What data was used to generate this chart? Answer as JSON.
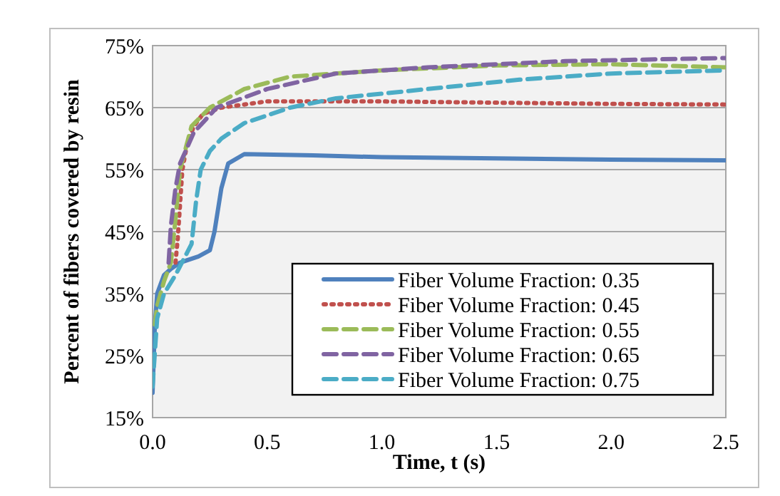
{
  "chart_data": {
    "type": "line",
    "xlabel": "Time, t (s)",
    "ylabel": "Percent of fibers covered by resin",
    "xlim": [
      0,
      2.5
    ],
    "xticks": [
      {
        "value": 0,
        "label": "0.0"
      },
      0.5,
      {
        "value": 1,
        "label": "1.0"
      },
      1.5,
      {
        "value": 2,
        "label": "2.0"
      },
      2.5
    ],
    "ylim": [
      15,
      75
    ],
    "yticks": [
      {
        "value": 15,
        "label": "15%"
      },
      {
        "value": 25,
        "label": "25%"
      },
      {
        "value": 35,
        "label": "35%"
      },
      {
        "value": 45,
        "label": "45%"
      },
      {
        "value": 55,
        "label": "55%"
      },
      {
        "value": 65,
        "label": "65%"
      },
      {
        "value": 75,
        "label": "75%"
      }
    ],
    "grid": "y",
    "legend": "bottom right",
    "marker": "none",
    "series": [
      {
        "name": "Fiber Volume Fraction: 0.35",
        "color": "#4f81bd",
        "line_style": "solid",
        "x": [
          0,
          0.01,
          0.02,
          0.05,
          0.08,
          0.12,
          0.2,
          0.25,
          0.27,
          0.3,
          0.33,
          0.4,
          0.7,
          1.0,
          1.5,
          2.0,
          2.5
        ],
        "values": [
          19,
          30,
          35,
          38,
          39,
          40,
          41,
          42,
          45,
          52,
          56,
          57.5,
          57.3,
          57,
          56.8,
          56.6,
          56.5
        ]
      },
      {
        "name": "Fiber Volume Fraction: 0.45",
        "color": "#c0504d",
        "line_style": "dotted",
        "x": [
          0.1,
          0.11,
          0.13,
          0.15,
          0.18,
          0.22,
          0.3,
          0.5,
          1.0,
          1.5,
          2.0,
          2.5
        ],
        "values": [
          40,
          44,
          55,
          59,
          62,
          64,
          65,
          66,
          66,
          65.8,
          65.6,
          65.5
        ]
      },
      {
        "name": "Fiber Volume Fraction: 0.55",
        "color": "#9bbb59",
        "line_style": "dashed",
        "x": [
          0.01,
          0.02,
          0.05,
          0.08,
          0.1,
          0.12,
          0.17,
          0.25,
          0.4,
          0.6,
          1.0,
          1.5,
          2.0,
          2.5
        ],
        "values": [
          30,
          33,
          37,
          40,
          47,
          55,
          62,
          65,
          68,
          70,
          71,
          71.8,
          72,
          71.5
        ]
      },
      {
        "name": "Fiber Volume Fraction: 0.65",
        "color": "#8064a2",
        "line_style": "dashed",
        "x": [
          0.07,
          0.08,
          0.1,
          0.12,
          0.18,
          0.28,
          0.5,
          0.8,
          1.2,
          1.8,
          2.5
        ],
        "values": [
          40,
          46,
          52,
          56,
          61,
          65,
          68,
          70.5,
          71.5,
          72.5,
          73
        ]
      },
      {
        "name": "Fiber Volume Fraction: 0.75",
        "color": "#4bacc6",
        "line_style": "dashed",
        "x": [
          0,
          0.02,
          0.05,
          0.1,
          0.17,
          0.19,
          0.21,
          0.25,
          0.3,
          0.4,
          0.6,
          0.8,
          1.2,
          1.6,
          2.0,
          2.5
        ],
        "values": [
          20,
          31,
          35,
          38,
          43,
          50,
          55,
          58,
          60,
          62.5,
          65,
          66.5,
          68,
          69.5,
          70.5,
          71
        ]
      }
    ]
  }
}
